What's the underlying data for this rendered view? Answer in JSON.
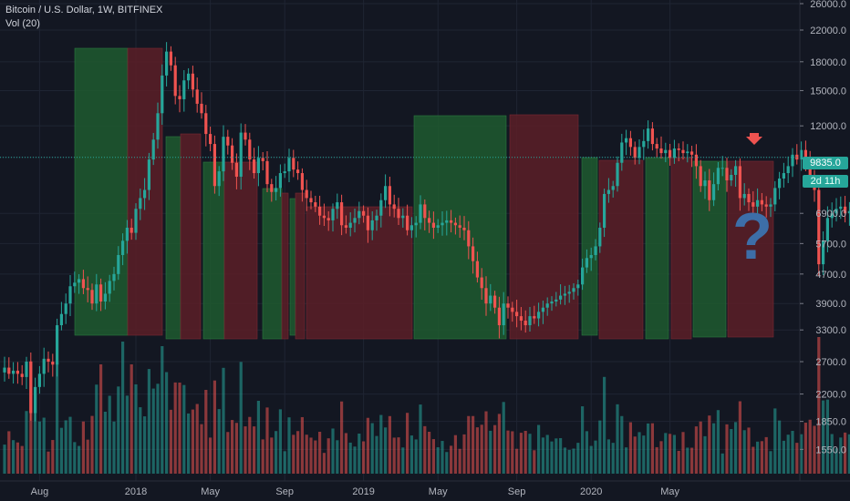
{
  "legend": {
    "symbol_line": "Bitcoin / U.S. Dollar, 1W, BITFINEX",
    "indicator_line": "Vol (20)"
  },
  "price_tag": "9835.0",
  "time_tag": "2d 11h",
  "question_mark": "?",
  "colors": {
    "background": "#131722",
    "up": "#26a69a",
    "down": "#ef5350",
    "zone_green": "#1e5a2f",
    "zone_red": "#5c1f27",
    "arrow": "#ef5350",
    "question": "#3d6ea8"
  },
  "chart_data": {
    "type": "candlestick",
    "title": "Bitcoin / U.S. Dollar, 1W, BITFINEX",
    "scale": "log",
    "ylim": [
      1400,
      26000
    ],
    "y_ticks": [
      26000,
      22000,
      18000,
      15000,
      12000,
      9835,
      6900,
      5700,
      4700,
      3900,
      3300,
      2700,
      2200,
      1850,
      1550
    ],
    "y_tick_labels": [
      "26000.0",
      "22000.0",
      "18000.0",
      "15000.0",
      "12000.0",
      "9835.0",
      "6900.0",
      "5700.0",
      "4700.0",
      "3900.0",
      "3300.0",
      "2700.0",
      "2200.0",
      "1850.0",
      "1550.0"
    ],
    "x_labels": [
      {
        "label": "Aug",
        "week": 8
      },
      {
        "label": "2018",
        "week": 30
      },
      {
        "label": "May",
        "week": 47
      },
      {
        "label": "Sep",
        "week": 64
      },
      {
        "label": "2019",
        "week": 82
      },
      {
        "label": "May",
        "week": 99
      },
      {
        "label": "Sep",
        "week": 117
      },
      {
        "label": "2020",
        "week": 134
      },
      {
        "label": "May",
        "week": 152
      }
    ],
    "candle_closes": [
      2600,
      2500,
      2550,
      2500,
      2450,
      2700,
      1950,
      2300,
      2500,
      2750,
      2700,
      2650,
      3400,
      3650,
      3900,
      4350,
      4450,
      4550,
      4300,
      4250,
      3900,
      4400,
      3950,
      4150,
      4500,
      4700,
      5300,
      5800,
      6300,
      6100,
      7100,
      7600,
      8000,
      9700,
      11000,
      13000,
      16500,
      19200,
      17600,
      14500,
      14200,
      16000,
      16700,
      15100,
      13800,
      13000,
      11400,
      10700,
      8200,
      9000,
      11200,
      10600,
      9500,
      8700,
      11500,
      11000,
      9700,
      8900,
      9800,
      9600,
      8300,
      7900,
      8100,
      8900,
      9000,
      9800,
      9100,
      8900,
      8000,
      7600,
      7400,
      7200,
      6800,
      6700,
      6600,
      7100,
      7400,
      6400,
      6300,
      6500,
      6700,
      7000,
      6800,
      6200,
      6600,
      6800,
      7500,
      8200,
      7300,
      7100,
      6700,
      6800,
      6200,
      6400,
      6500,
      7300,
      6700,
      6500,
      6300,
      6400,
      6500,
      6600,
      6500,
      6400,
      6300,
      6200,
      5600,
      5100,
      4600,
      4300,
      3900,
      4100,
      3800,
      3400,
      3900,
      3800,
      3700,
      3600,
      3500,
      3400,
      3600,
      3550,
      3700,
      3800,
      3900,
      3950,
      4000,
      4100,
      4150,
      4200,
      4300,
      4400,
      4900,
      5200,
      5300,
      5600,
      6300,
      7800,
      8000,
      8200,
      9500,
      10800,
      11100,
      10500,
      9800,
      10500,
      10900,
      11800,
      10700,
      10400,
      10100,
      10300,
      9800,
      10400,
      10300,
      10100,
      10200,
      10000,
      9300,
      8200,
      8500,
      7500,
      8300,
      9200,
      9200,
      8500,
      8800,
      9300,
      7600,
      7800,
      7400,
      7200,
      7500,
      7300,
      7200,
      7300,
      8100,
      8600,
      8900,
      9300,
      10000,
      9700,
      10300,
      9600,
      8800,
      8000,
      5000,
      5800,
      6700,
      6900,
      7100,
      7200,
      6900,
      7000,
      7700,
      7800,
      8900,
      9835
    ]
  }
}
